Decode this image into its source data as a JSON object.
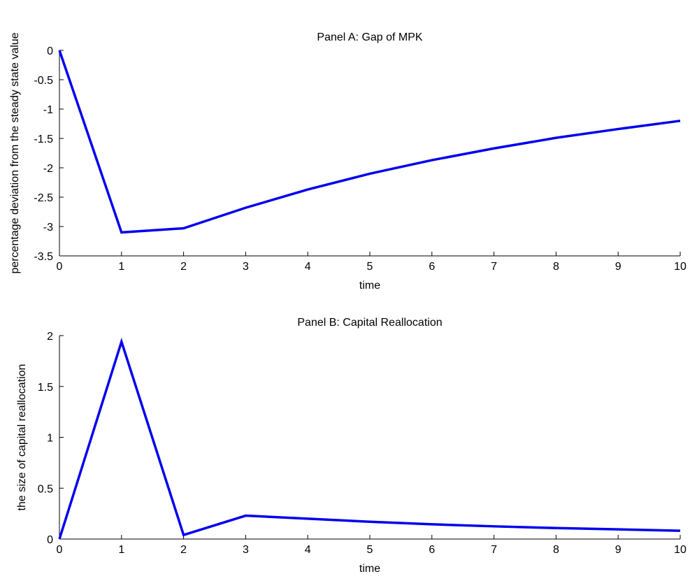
{
  "chart_data": [
    {
      "type": "line",
      "title": "Panel A: Gap of MPK",
      "xlabel": "time",
      "ylabel": "percentage deviation from the steady state value",
      "x": [
        0,
        1,
        2,
        3,
        4,
        5,
        6,
        7,
        8,
        9,
        10
      ],
      "series": [
        {
          "values": [
            0,
            -3.1,
            -3.03,
            -2.68,
            -2.37,
            -2.1,
            -1.87,
            -1.67,
            -1.49,
            -1.34,
            -1.2
          ]
        }
      ],
      "xlim": [
        0,
        10
      ],
      "ylim": [
        -3.5,
        0
      ],
      "xticks": [
        "0",
        "1",
        "2",
        "3",
        "4",
        "5",
        "6",
        "7",
        "8",
        "9",
        "10"
      ],
      "yticks": [
        "0",
        "-0.5",
        "-1",
        "-1.5",
        "-2",
        "-2.5",
        "-3",
        "-3.5"
      ],
      "grid": false,
      "line_color": "#0000ee"
    },
    {
      "type": "line",
      "title": "Panel B: Capital Reallocation",
      "xlabel": "time",
      "ylabel": "the size of capital reallocation",
      "x": [
        0,
        1,
        2,
        3,
        4,
        5,
        6,
        7,
        8,
        9,
        10
      ],
      "series": [
        {
          "values": [
            0,
            1.94,
            0.04,
            0.23,
            0.2,
            0.17,
            0.145,
            0.125,
            0.108,
            0.095,
            0.082
          ]
        }
      ],
      "xlim": [
        0,
        10
      ],
      "ylim": [
        0,
        2
      ],
      "xticks": [
        "0",
        "1",
        "2",
        "3",
        "4",
        "5",
        "6",
        "7",
        "8",
        "9",
        "10"
      ],
      "yticks": [
        "0",
        "0.5",
        "1",
        "1.5",
        "2"
      ],
      "grid": false,
      "line_color": "#0000ee"
    }
  ]
}
